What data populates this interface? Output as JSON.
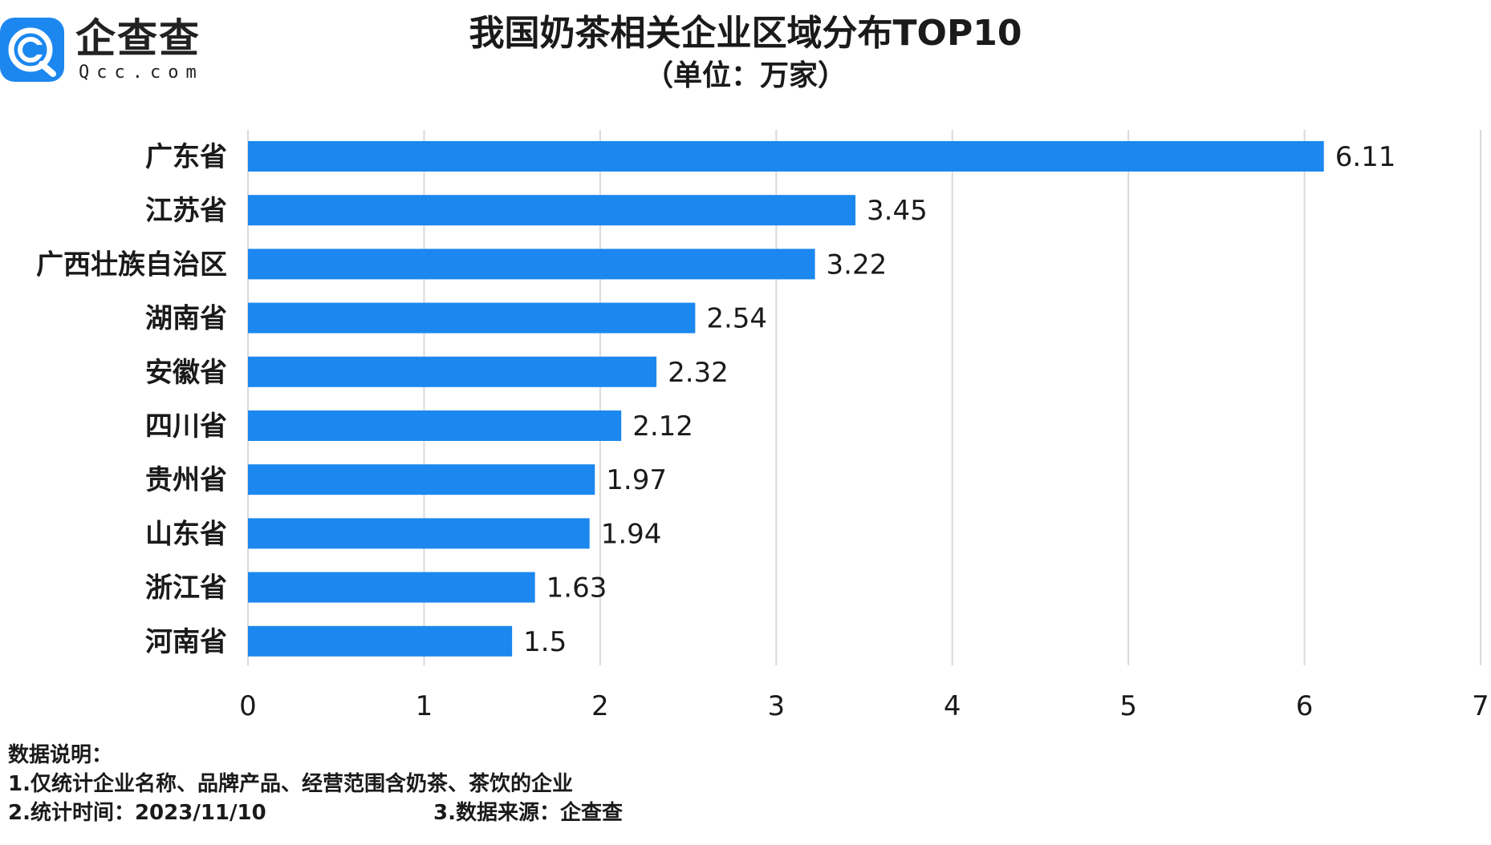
{
  "logo": {
    "brand_cn": "企查查",
    "brand_en": "Qcc.com",
    "icon": "qcc-logo-icon"
  },
  "title": "我国奶茶相关企业区域分布TOP10",
  "subtitle": "（单位：万家）",
  "colors": {
    "bar": "#1c87ee",
    "grid": "#d9d9d9",
    "text": "#1a1a1a"
  },
  "chart_data": {
    "type": "bar",
    "orientation": "horizontal",
    "categories": [
      "广东省",
      "江苏省",
      "广西壮族自治区",
      "湖南省",
      "安徽省",
      "四川省",
      "贵州省",
      "山东省",
      "浙江省",
      "河南省"
    ],
    "values": [
      6.11,
      3.45,
      3.22,
      2.54,
      2.32,
      2.12,
      1.97,
      1.94,
      1.63,
      1.5
    ],
    "value_labels": [
      "6.11",
      "3.45",
      "3.22",
      "2.54",
      "2.32",
      "2.12",
      "1.97",
      "1.94",
      "1.63",
      "1.5"
    ],
    "xlim": [
      0,
      7
    ],
    "xticks": [
      "0",
      "1",
      "2",
      "3",
      "4",
      "5",
      "6",
      "7"
    ],
    "grid": "vertical",
    "legend": "none"
  },
  "notes": {
    "heading": "数据说明：",
    "line1": "1.仅统计企业名称、品牌产品、经营范围含奶茶、茶饮的企业",
    "line2": "2.统计时间：2023/11/10",
    "source": "3.数据来源：企查查"
  }
}
